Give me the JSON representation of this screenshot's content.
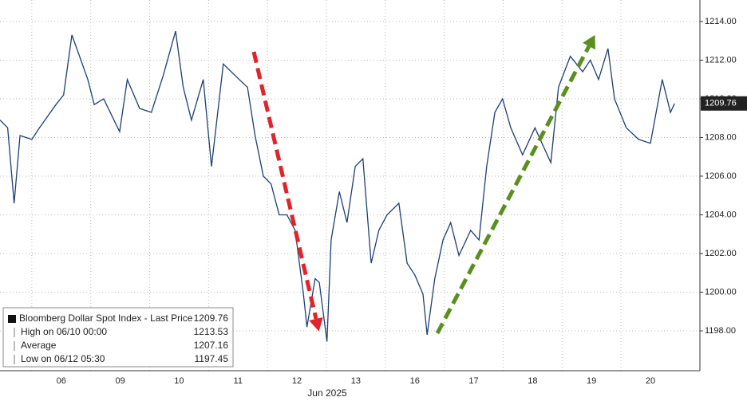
{
  "chart_data": {
    "type": "line",
    "x_label": "Jun 2025",
    "categories": [
      "06",
      "09",
      "10",
      "11",
      "12",
      "13",
      "16",
      "17",
      "18",
      "19",
      "20"
    ],
    "x": [
      -1.04,
      -0.91,
      -0.8,
      -0.7,
      -0.5,
      -0.37,
      -0.09,
      0.04,
      0.18,
      0.31,
      0.45,
      0.56,
      0.72,
      0.99,
      1.12,
      1.33,
      1.53,
      1.73,
      1.94,
      2.07,
      2.21,
      2.41,
      2.55,
      2.75,
      3.02,
      3.16,
      3.29,
      3.43,
      3.56,
      3.7,
      3.83,
      3.97,
      4.11,
      4.17,
      4.31,
      4.38,
      4.51,
      4.58,
      4.72,
      4.85,
      4.99,
      5.12,
      5.26,
      5.39,
      5.53,
      5.73,
      5.87,
      6.0,
      6.14,
      6.21,
      6.34,
      6.48,
      6.61,
      6.75,
      6.95,
      7.09,
      7.22,
      7.36,
      7.49,
      7.63,
      7.83,
      8.04,
      8.31,
      8.44,
      8.64,
      8.85,
      8.98,
      9.12,
      9.28,
      9.39,
      9.59,
      9.8,
      10.0,
      10.2,
      10.34,
      10.41
    ],
    "series": [
      {
        "name": "Bloomberg Dollar Spot Index - Last Price",
        "color": "#1c3f73",
        "values": [
          1208.9,
          1208.5,
          1204.6,
          1208.1,
          1207.9,
          1208.5,
          1209.7,
          1210.2,
          1213.3,
          1212.2,
          1211.0,
          1209.7,
          1210.0,
          1208.3,
          1211.0,
          1209.5,
          1209.3,
          1211.2,
          1213.5,
          1210.6,
          1208.9,
          1211.0,
          1206.5,
          1211.8,
          1211.0,
          1210.6,
          1208.1,
          1206.0,
          1205.6,
          1204.0,
          1204.0,
          1203.2,
          1199.9,
          1198.2,
          1200.7,
          1200.5,
          1197.45,
          1202.7,
          1205.2,
          1203.6,
          1206.5,
          1206.9,
          1201.5,
          1203.2,
          1204.0,
          1204.6,
          1201.5,
          1200.9,
          1199.9,
          1197.8,
          1200.7,
          1202.7,
          1203.6,
          1201.9,
          1203.2,
          1202.7,
          1206.5,
          1209.3,
          1210.0,
          1208.5,
          1207.1,
          1208.5,
          1206.7,
          1210.6,
          1212.2,
          1211.4,
          1212.0,
          1211.0,
          1212.6,
          1210.0,
          1208.5,
          1207.9,
          1207.7,
          1211.0,
          1209.3,
          1209.76
        ]
      }
    ],
    "xlim": [
      -1.04,
      10.84
    ],
    "ylim": [
      1195.94,
      1215.11
    ],
    "yticks": [
      {
        "value": 1198,
        "label": "1198.00"
      },
      {
        "value": 1200,
        "label": "1200.00"
      },
      {
        "value": 1202,
        "label": "1202.00"
      },
      {
        "value": 1204,
        "label": "1204.00"
      },
      {
        "value": 1206,
        "label": "1206.00"
      },
      {
        "value": 1208,
        "label": "1208.00"
      },
      {
        "value": 1210,
        "label": "1210.00"
      },
      {
        "value": 1212,
        "label": "1212.00"
      },
      {
        "value": 1214,
        "label": "1214.00"
      }
    ],
    "grid": true,
    "last_price": {
      "label": "1209.76",
      "value": 1209.76
    },
    "legend": [
      {
        "label": "Bloomberg Dollar Spot Index - Last Price",
        "value": "1209.76"
      },
      {
        "label": "High on 06/10 00:00",
        "value": "1213.53"
      },
      {
        "label": "Average",
        "value": "1207.16"
      },
      {
        "label": "Low on 06/12 05:30",
        "value": "1197.45"
      }
    ]
  }
}
